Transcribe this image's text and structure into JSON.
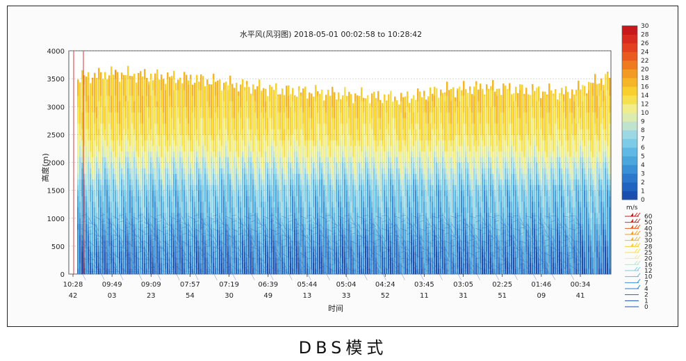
{
  "chart_data": {
    "type": "heatmap",
    "title": "水平风(风羽图)  2018-05-01  00:02:58  to  10:28:42",
    "xlabel": "时间",
    "ylabel": "高度(m)",
    "ylim": [
      0,
      4000
    ],
    "yticks": [
      0,
      500,
      1000,
      1500,
      2000,
      2500,
      3000,
      3500,
      4000
    ],
    "xticks": [
      {
        "top": "10:28",
        "bottom": "42"
      },
      {
        "top": "09:49",
        "bottom": "03"
      },
      {
        "top": "09:09",
        "bottom": "23"
      },
      {
        "top": "07:57",
        "bottom": "54"
      },
      {
        "top": "07:19",
        "bottom": "30"
      },
      {
        "top": "06:39",
        "bottom": "49"
      },
      {
        "top": "05:44",
        "bottom": "13"
      },
      {
        "top": "05:04",
        "bottom": "33"
      },
      {
        "top": "04:24",
        "bottom": "52"
      },
      {
        "top": "03:45",
        "bottom": "11"
      },
      {
        "top": "03:05",
        "bottom": "31"
      },
      {
        "top": "02:25",
        "bottom": "51"
      },
      {
        "top": "01:46",
        "bottom": "09"
      },
      {
        "top": "00:34",
        "bottom": "41"
      }
    ],
    "grid": true,
    "colorbar": {
      "unit": "m/s",
      "ticks": [
        0,
        1,
        2,
        3,
        4,
        5,
        6,
        7,
        8,
        9,
        10,
        12,
        14,
        16,
        18,
        20,
        22,
        24,
        26,
        28,
        30
      ],
      "colors": [
        "#1a4fb0",
        "#2163c0",
        "#2b78cc",
        "#3a90d6",
        "#4ba6de",
        "#5fb9e4",
        "#7ecbe7",
        "#9cd8e4",
        "#bfe3cf",
        "#dcebb0",
        "#f1ee8a",
        "#f6e04d",
        "#f7cf2f",
        "#f5b526",
        "#f39a22",
        "#ef7b20",
        "#ea5b1f",
        "#e3401f",
        "#d92a1f",
        "#c7181c"
      ]
    },
    "barb_legend": {
      "unit": "m/s",
      "ticks": [
        60,
        50,
        40,
        35,
        30,
        28,
        25,
        20,
        16,
        12,
        10,
        7,
        4,
        2,
        1,
        0
      ]
    },
    "height_profile_ms": [
      {
        "height": 0,
        "speed": 2
      },
      {
        "height": 500,
        "speed": 3
      },
      {
        "height": 1000,
        "speed": 5
      },
      {
        "height": 1500,
        "speed": 6
      },
      {
        "height": 2000,
        "speed": 9
      },
      {
        "height": 2500,
        "speed": 13
      },
      {
        "height": 3000,
        "speed": 15
      },
      {
        "height": 3500,
        "speed": 16
      }
    ],
    "data_top_height_approx": [
      3500,
      3600,
      3550,
      3500,
      3400,
      3300,
      3250,
      3200,
      3150,
      3300,
      3350,
      3300,
      3250,
      3550
    ]
  },
  "caption": "DBS模式"
}
